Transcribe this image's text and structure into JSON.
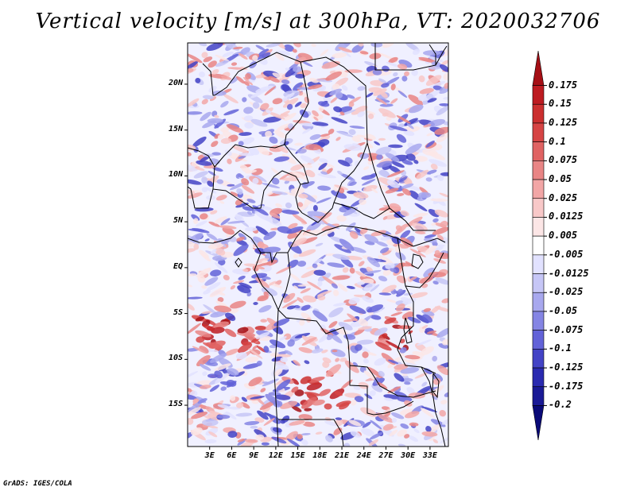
{
  "title": "Vertical velocity [m/s] at 300hPa, VT: 2020032706",
  "credit": "GrADS: IGES/COLA",
  "map": {
    "projection": "latlon",
    "lon_range": [
      0,
      35.5
    ],
    "lat_range": [
      -19.5,
      24.5
    ],
    "lat_tick_labels": [
      {
        "lat": 20,
        "label": "20N"
      },
      {
        "lat": 15,
        "label": "15N"
      },
      {
        "lat": 10,
        "label": "10N"
      },
      {
        "lat": 5,
        "label": "5N"
      },
      {
        "lat": 0,
        "label": "EQ"
      },
      {
        "lat": -5,
        "label": "5S"
      },
      {
        "lat": -10,
        "label": "10S"
      },
      {
        "lat": -15,
        "label": "15S"
      }
    ],
    "lon_tick_labels": [
      {
        "lon": 3,
        "label": "3E"
      },
      {
        "lon": 6,
        "label": "6E"
      },
      {
        "lon": 9,
        "label": "9E"
      },
      {
        "lon": 12,
        "label": "12E"
      },
      {
        "lon": 15,
        "label": "15E"
      },
      {
        "lon": 18,
        "label": "18E"
      },
      {
        "lon": 21,
        "label": "21E"
      },
      {
        "lon": 24,
        "label": "24E"
      },
      {
        "lon": 27,
        "label": "27E"
      },
      {
        "lon": 30,
        "label": "30E"
      },
      {
        "lon": 33,
        "label": "33E"
      }
    ]
  },
  "colorbar": {
    "levels": [
      "0.175",
      "0.15",
      "0.125",
      "0.1",
      "0.075",
      "0.05",
      "0.025",
      "0.0125",
      "0.005",
      "-0.005",
      "-0.0125",
      "-0.025",
      "-0.05",
      "-0.075",
      "-0.1",
      "-0.125",
      "-0.175",
      "-0.2"
    ],
    "colors": [
      "#a50f15",
      "#bd1b21",
      "#cb2f2f",
      "#d64444",
      "#e06363",
      "#e98585",
      "#f2a6a6",
      "#f8c8c8",
      "#fce6e6",
      "#ffffff",
      "#e2e2ff",
      "#c6c6f6",
      "#a8a8ee",
      "#8585e4",
      "#6262d8",
      "#4343c6",
      "#2a2ab0",
      "#1a1a96",
      "#0a0a78"
    ]
  }
}
